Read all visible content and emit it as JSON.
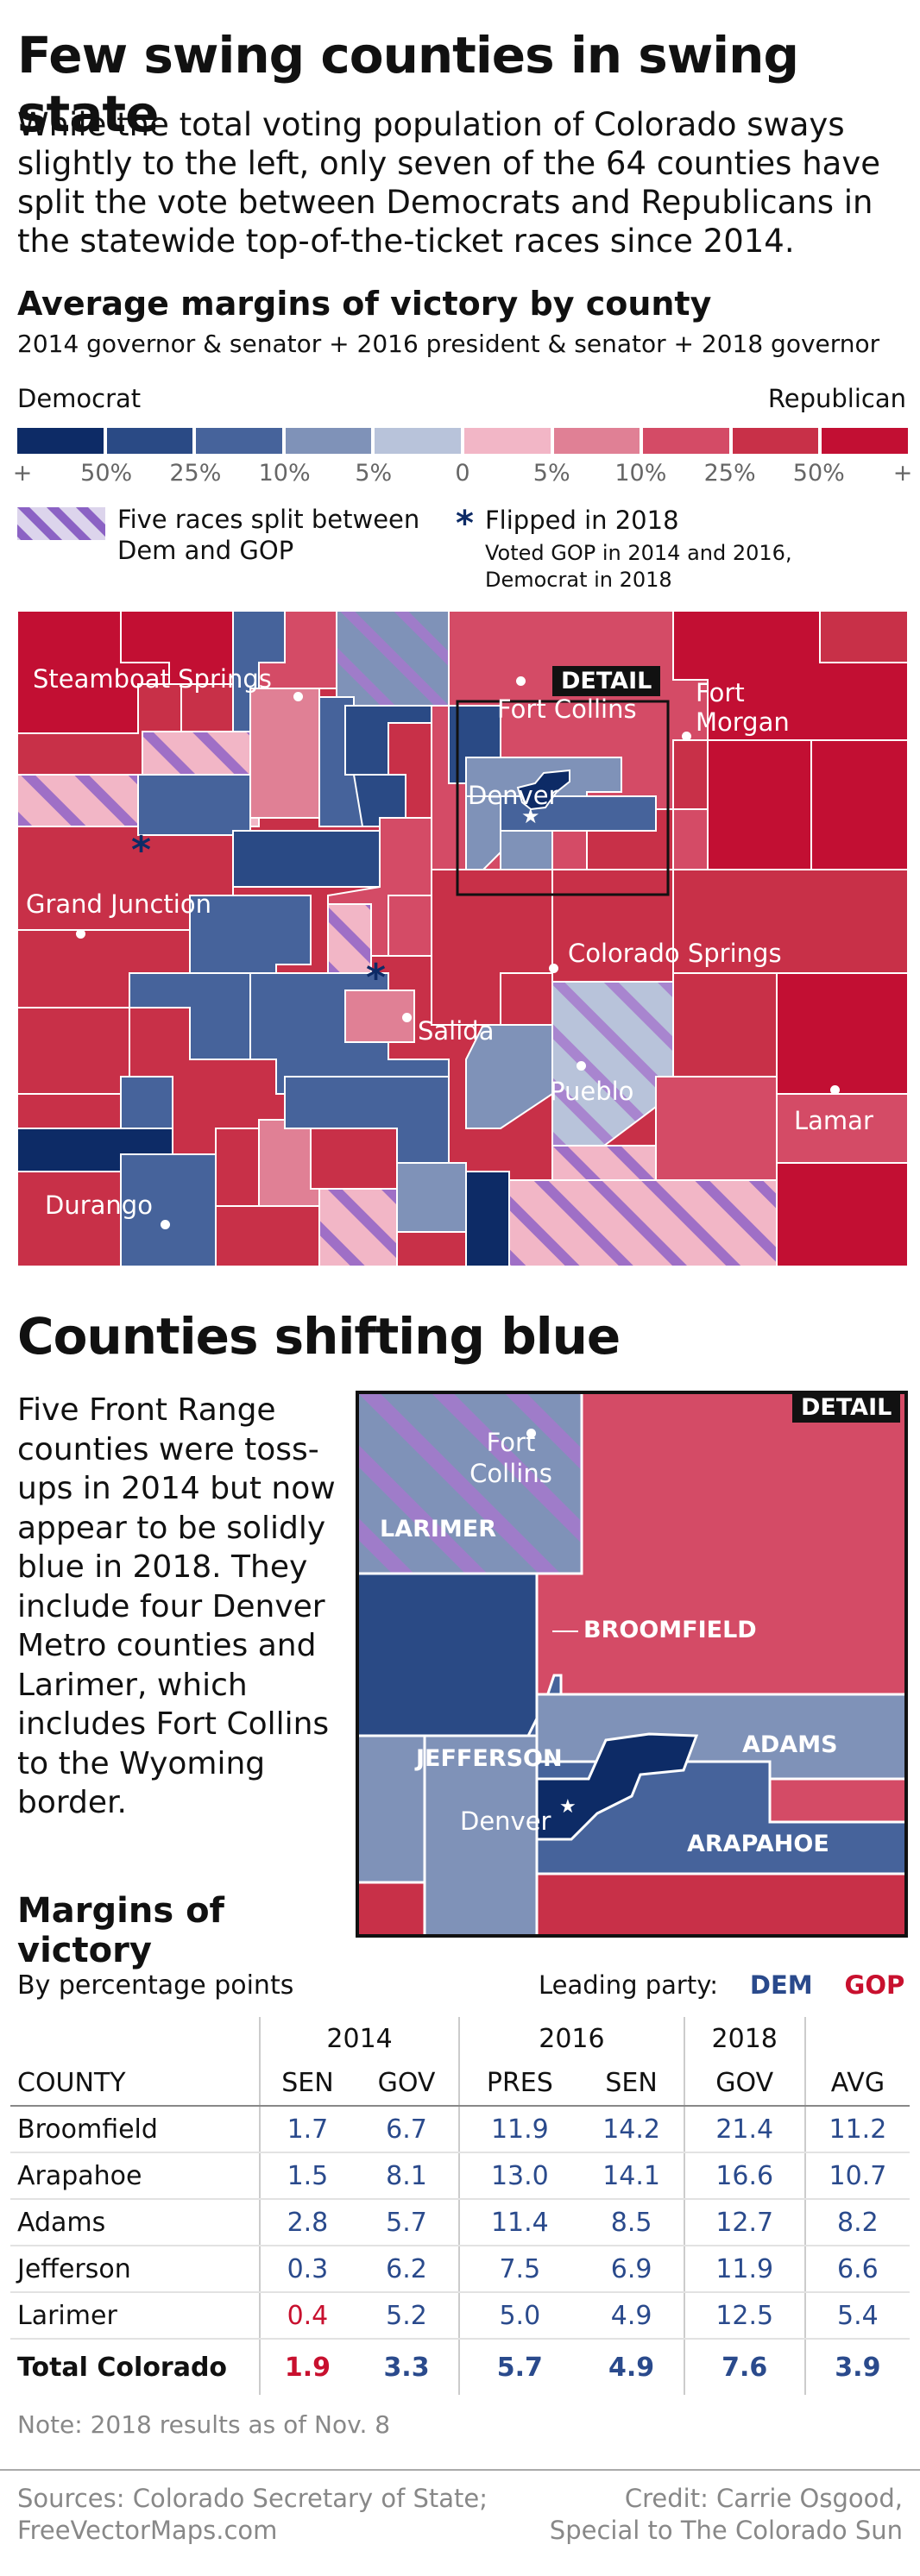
{
  "title": "Few swing counties in swing state",
  "intro": "While the total voting population of Colorado sways slightly to the left, only seven of the 64 counties have split the vote between Democrats and Republicans in the statewide top-of-the-ticket races since 2014.",
  "map_section": {
    "heading": "Average margins of victory by county",
    "subheading": "2014 governor & senator + 2016 president & senator + 2018 governor",
    "legend": {
      "left_label": "Democrat",
      "right_label": "Republican",
      "scale_colors": [
        "#0d2b66",
        "#2a4a85",
        "#46639b",
        "#7f92b8",
        "#b8c3da",
        "#f2b6c6",
        "#e08095",
        "#d44b66",
        "#c83048",
        "#c20f33"
      ],
      "tick_labels": [
        "+",
        "50%",
        "25%",
        "10%",
        "5%",
        "0",
        "5%",
        "10%",
        "25%",
        "50%",
        "+"
      ],
      "split_label": "Five races split between Dem and GOP",
      "flipped_symbol": "*",
      "flipped_label": "Flipped in 2018",
      "flipped_note": "Voted GOP in 2014 and 2016, Democrat in 2018"
    },
    "detail_tag": "DETAIL",
    "cities": {
      "steamboat": "Steamboat Springs",
      "fort_collins": "Fort Collins",
      "fort_morgan": "Fort Morgan",
      "denver": "Denver",
      "grand_junction": "Grand Junction",
      "colorado_springs": "Colorado Springs",
      "salida": "Salida",
      "pueblo": "Pueblo",
      "lamar": "Lamar",
      "durango": "Durango"
    }
  },
  "shift_section": {
    "heading": "Counties shifting blue",
    "body": "Five Front Range counties were toss-ups in 2014 but now appear to be solidly blue in 2018. They include four Denver Metro counties and Larimer, which includes Fort Collins to the Wyoming border.",
    "detail_tag": "DETAIL",
    "labels": {
      "fort_collins": "Fort Collins",
      "larimer": "LARIMER",
      "broomfield": "BROOMFIELD",
      "jefferson": "JEFFERSON",
      "adams": "ADAMS",
      "denver": "Denver",
      "arapahoe": "ARAPAHOE"
    }
  },
  "table": {
    "heading": "Margins of victory",
    "subheading": "By percentage points",
    "leading_party_label": "Leading party:",
    "dem_label": "DEM",
    "gop_label": "GOP",
    "colors": {
      "dem": "#2a4a8c",
      "gop": "#c8102e"
    },
    "years": [
      "2014",
      "2016",
      "2018"
    ],
    "columns": [
      "COUNTY",
      "SEN",
      "GOV",
      "PRES",
      "SEN",
      "GOV",
      "AVG"
    ],
    "rows": [
      {
        "county": "Broomfield",
        "values": [
          "1.7",
          "6.7",
          "11.9",
          "14.2",
          "21.4",
          "11.2"
        ],
        "party": [
          "dem",
          "dem",
          "dem",
          "dem",
          "dem",
          "dem"
        ]
      },
      {
        "county": "Arapahoe",
        "values": [
          "1.5",
          "8.1",
          "13.0",
          "14.1",
          "16.6",
          "10.7"
        ],
        "party": [
          "dem",
          "dem",
          "dem",
          "dem",
          "dem",
          "dem"
        ]
      },
      {
        "county": "Adams",
        "values": [
          "2.8",
          "5.7",
          "11.4",
          "8.5",
          "12.7",
          "8.2"
        ],
        "party": [
          "dem",
          "dem",
          "dem",
          "dem",
          "dem",
          "dem"
        ]
      },
      {
        "county": "Jefferson",
        "values": [
          "0.3",
          "6.2",
          "7.5",
          "6.9",
          "11.9",
          "6.6"
        ],
        "party": [
          "dem",
          "dem",
          "dem",
          "dem",
          "dem",
          "dem"
        ]
      },
      {
        "county": "Larimer",
        "values": [
          "0.4",
          "5.2",
          "5.0",
          "4.9",
          "12.5",
          "5.4"
        ],
        "party": [
          "gop",
          "dem",
          "dem",
          "dem",
          "dem",
          "dem"
        ]
      }
    ],
    "total": {
      "county": "Total Colorado",
      "values": [
        "1.9",
        "3.3",
        "5.7",
        "4.9",
        "7.6",
        "3.9"
      ],
      "party": [
        "gop",
        "dem",
        "dem",
        "dem",
        "dem",
        "dem"
      ]
    }
  },
  "note": "Note: 2018 results as of Nov. 8",
  "sources": "Sources: Colorado Secretary of State; FreeVectorMaps.com",
  "credit": "Credit: Carrie Osgood, Special to The Colorado Sun"
}
